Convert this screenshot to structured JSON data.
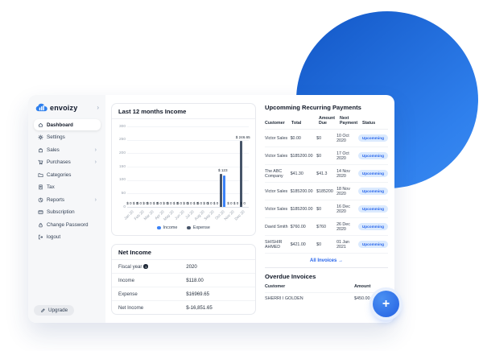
{
  "colors": {
    "accent": "#2f80ed",
    "income_bar": "#3b82f6",
    "expense_bar": "#475569",
    "status_bg": "#dbeafe",
    "status_text": "#2563eb"
  },
  "sidebar": {
    "logo_text": "envoizy",
    "logo_chevron": "›",
    "items": [
      {
        "icon": "home-icon",
        "label": "Dashboard",
        "active": true,
        "chevron": false
      },
      {
        "icon": "gear-icon",
        "label": "Settings",
        "active": false,
        "chevron": false
      },
      {
        "icon": "bag-icon",
        "label": "Sales",
        "active": false,
        "chevron": true
      },
      {
        "icon": "cart-icon",
        "label": "Purchases",
        "active": false,
        "chevron": true
      },
      {
        "icon": "folder-icon",
        "label": "Categories",
        "active": false,
        "chevron": false
      },
      {
        "icon": "receipt-icon",
        "label": "Tax",
        "active": false,
        "chevron": false
      },
      {
        "icon": "pie-chart-icon",
        "label": "Reports",
        "active": false,
        "chevron": true
      },
      {
        "icon": "credit-card-icon",
        "label": "Subscription",
        "active": false,
        "chevron": false
      },
      {
        "icon": "lock-icon",
        "label": "Change Password",
        "active": false,
        "chevron": false
      },
      {
        "icon": "logout-icon",
        "label": "logout",
        "active": false,
        "chevron": false
      }
    ],
    "upgrade_label": "Upgrade"
  },
  "chart_data": {
    "type": "bar",
    "title": "Last 12 months Income",
    "categories": [
      "Jan 20",
      "Feb 20",
      "Mar 20",
      "Apr 20",
      "May 20",
      "Jun 20",
      "Jul 20",
      "Aug 20",
      "Sep 20",
      "Oct 20",
      "Nov 20",
      "Dec 20"
    ],
    "series": [
      {
        "name": "Expense",
        "color": "#475569",
        "values": [
          0,
          0,
          0,
          0,
          0,
          0,
          0,
          0,
          0,
          123,
          0,
          246.65
        ]
      },
      {
        "name": "Income",
        "color": "#3b82f6",
        "values": [
          0,
          0,
          0,
          0,
          0,
          0,
          0,
          0,
          0,
          118,
          0,
          0
        ]
      }
    ],
    "legend_order": [
      "Income",
      "Expense"
    ],
    "legend_colors": {
      "Income": "#3b82f6",
      "Expense": "#475569"
    },
    "ylim": [
      0,
      300
    ],
    "yticks": [
      0,
      50,
      100,
      150,
      200,
      250,
      300
    ],
    "grid": true,
    "legend_position": "bottom",
    "value_labels": [
      {
        "above": "",
        "baseline": "$ 0  $ 0"
      },
      {
        "above": "",
        "baseline": "$ 0  $ 0"
      },
      {
        "above": "",
        "baseline": "$ 0  $ 0"
      },
      {
        "above": "",
        "baseline": "$ 0  $ 0"
      },
      {
        "above": "",
        "baseline": "$ 0  $ 0"
      },
      {
        "above": "",
        "baseline": "$ 0  $ 0"
      },
      {
        "above": "",
        "baseline": "$ 0  $ 0"
      },
      {
        "above": "",
        "baseline": "$ 0  $ 0"
      },
      {
        "above": "",
        "baseline": "$ 0  $ 0"
      },
      {
        "above": "$ 123",
        "baseline": ""
      },
      {
        "above": "",
        "baseline": "$ 0  $ 0"
      },
      {
        "above": "$ 246.65",
        "baseline": "$ 0"
      }
    ]
  },
  "net_income": {
    "title": "Net Income",
    "rows": [
      {
        "label": "Fiscal year",
        "info": true,
        "value": "2020"
      },
      {
        "label": "Income",
        "info": false,
        "value": "$118.00"
      },
      {
        "label": "Expense",
        "info": false,
        "value": "$16969.65"
      },
      {
        "label": "Net Income",
        "info": false,
        "value": "$-16,851.65"
      }
    ]
  },
  "recurring": {
    "title": "Upcomming Recurring Payments",
    "headers": [
      "Customer",
      "Total",
      "Amount Due",
      "Next Payment",
      "Status"
    ],
    "rows": [
      {
        "customer": "Victor Sales",
        "total": "$0.00",
        "amount_due": "$0",
        "next_payment": "10 Oct 2020",
        "status": "Upcomming"
      },
      {
        "customer": "Victor Sales",
        "total": "$185200.00",
        "amount_due": "$0",
        "next_payment": "17 Oct 2020",
        "status": "Upcomming"
      },
      {
        "customer": "The ABC Company",
        "total": "$41.30",
        "amount_due": "$41.3",
        "next_payment": "14 Nov 2020",
        "status": "Upcomming"
      },
      {
        "customer": "Victor Sales",
        "total": "$185200.00",
        "amount_due": "$185200",
        "next_payment": "18 Nov 2020",
        "status": "Upcomming"
      },
      {
        "customer": "Victor Sales",
        "total": "$185200.00",
        "amount_due": "$0",
        "next_payment": "16 Dec 2020",
        "status": "Upcomming"
      },
      {
        "customer": "David Smith",
        "total": "$760.00",
        "amount_due": "$760",
        "next_payment": "26 Dec 2020",
        "status": "Upcomming"
      },
      {
        "customer": "SHISHIR AHMED",
        "total": "$421.00",
        "amount_due": "$0",
        "next_payment": "01 Jan 2021",
        "status": "Upcomming"
      }
    ],
    "all_invoices_label": "All Invoices →"
  },
  "overdue": {
    "title": "Overdue Invoices",
    "headers": [
      "Customer",
      "Amount"
    ],
    "rows": [
      {
        "customer": "SHERRI I GOLDEN",
        "amount": "$450.00"
      }
    ]
  },
  "fab": {
    "label": "+"
  }
}
